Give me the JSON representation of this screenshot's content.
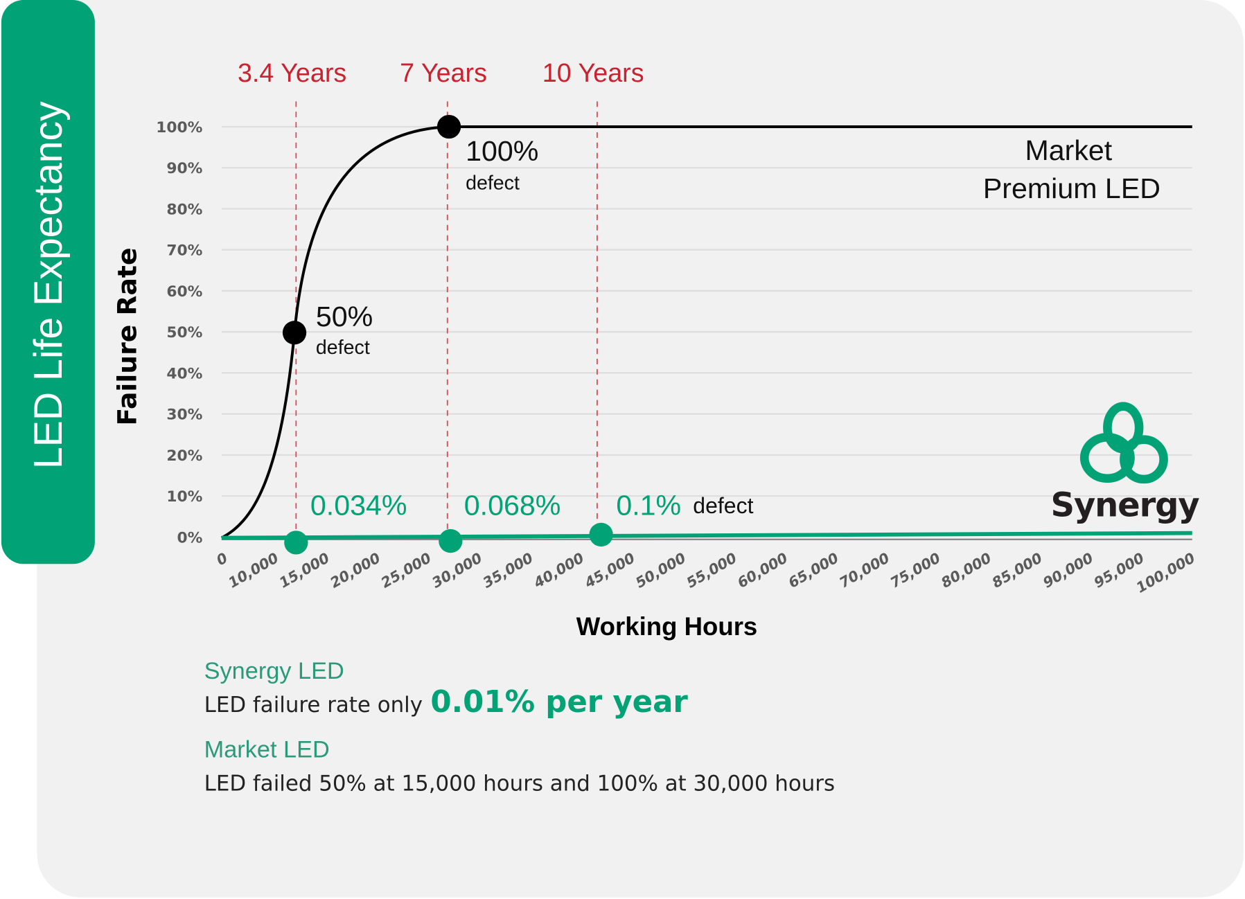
{
  "side_title": "LED Life Expectancy",
  "chart_data": {
    "type": "line",
    "ylabel": "Failure Rate",
    "xlabel": "Working Hours",
    "ylim": [
      0,
      100
    ],
    "y_ticks": [
      "0%",
      "10%",
      "20%",
      "30%",
      "40%",
      "50%",
      "60%",
      "70%",
      "80%",
      "90%",
      "100%"
    ],
    "x_ticks": [
      "0",
      "10,000",
      "15,000",
      "20,000",
      "25,000",
      "30,000",
      "35,000",
      "40,000",
      "45,000",
      "50,000",
      "55,000",
      "60,000",
      "65,000",
      "70,000",
      "75,000",
      "80,000",
      "85,000",
      "90,000",
      "95,000",
      "100,000"
    ],
    "grid": true,
    "year_markers": [
      {
        "label": "3.4 Years",
        "hours": 15000
      },
      {
        "label": "7 Years",
        "hours": 30000
      },
      {
        "label": "10 Years",
        "hours": 43800
      }
    ],
    "series": [
      {
        "name": "Market Premium LED",
        "name_lines": [
          "Market",
          "Premium LED"
        ],
        "color": "#000000",
        "points": [
          [
            0,
            0
          ],
          [
            15000,
            50
          ],
          [
            30000,
            100
          ],
          [
            100000,
            100
          ]
        ]
      },
      {
        "name": "Synergy",
        "color": "#00a276",
        "points": [
          [
            0,
            0
          ],
          [
            15000,
            0.034
          ],
          [
            30000,
            0.068
          ],
          [
            43800,
            0.1
          ],
          [
            100000,
            0.1
          ]
        ]
      }
    ],
    "annotations": {
      "market_50": {
        "value": "50%",
        "unit": "defect"
      },
      "market_100": {
        "value": "100%",
        "unit": "defect"
      },
      "synergy_1": "0.034%",
      "synergy_2": "0.068%",
      "synergy_3": "0.1%",
      "synergy_3_unit": "defect"
    }
  },
  "logo": {
    "text": "Synergy"
  },
  "notes": {
    "synergy_title": "Synergy LED",
    "synergy_text": "LED failure rate only",
    "synergy_highlight": "0.01% per year",
    "market_title": "Market LED",
    "market_text": "LED failed 50% at 15,000 hours and 100% at 30,000 hours"
  },
  "colors": {
    "green": "#00a276",
    "red": "#c8232f",
    "background": "#f1f1f1"
  }
}
